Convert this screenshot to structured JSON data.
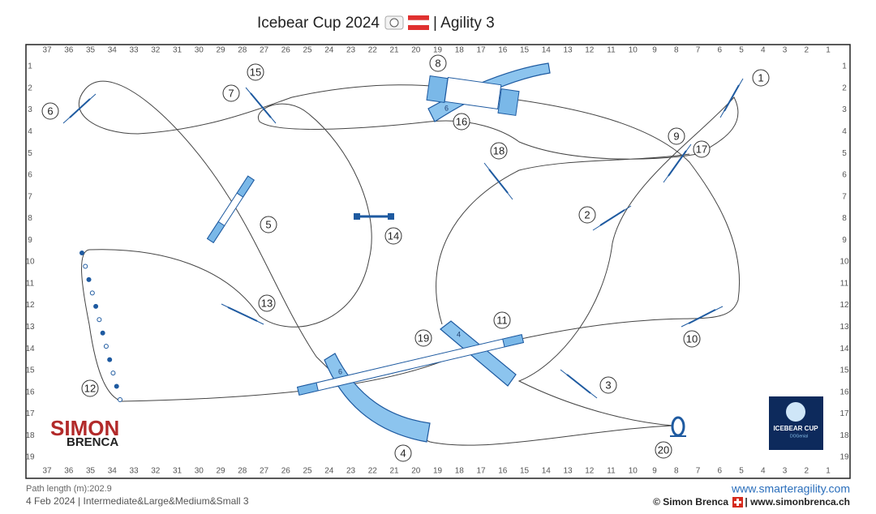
{
  "title": {
    "main": "Icebear Cup 2024",
    "course": "| Agility 3"
  },
  "grid": {
    "columns": [
      37,
      36,
      35,
      34,
      33,
      32,
      31,
      30,
      29,
      28,
      27,
      26,
      25,
      24,
      23,
      22,
      21,
      20,
      19,
      18,
      17,
      16,
      15,
      14,
      13,
      12,
      11,
      10,
      9,
      8,
      7,
      6,
      5,
      4,
      3,
      2,
      1
    ],
    "rows": [
      1,
      2,
      3,
      4,
      5,
      6,
      7,
      8,
      9,
      10,
      11,
      12,
      13,
      14,
      15,
      16,
      17,
      18,
      19
    ]
  },
  "obstacle_numbers": [
    1,
    2,
    3,
    4,
    5,
    6,
    7,
    8,
    9,
    10,
    11,
    12,
    13,
    14,
    15,
    16,
    17,
    18,
    19,
    20
  ],
  "tunnel_labels": [
    "6",
    "4",
    "6"
  ],
  "footer": {
    "path_length": "Path length (m):202.9",
    "info": "4 Feb 2024 | Intermediate&Large&Medium&Small 3",
    "website": "www.smarteragility.com",
    "copyright": "© Simon Brenca",
    "copyright_site": "| www.simonbrenca.ch"
  },
  "logos": {
    "simon": "SIMON",
    "brenca": "BRENCA",
    "icebear": "ICEBEAR CUP",
    "sub": "DOGenial"
  }
}
